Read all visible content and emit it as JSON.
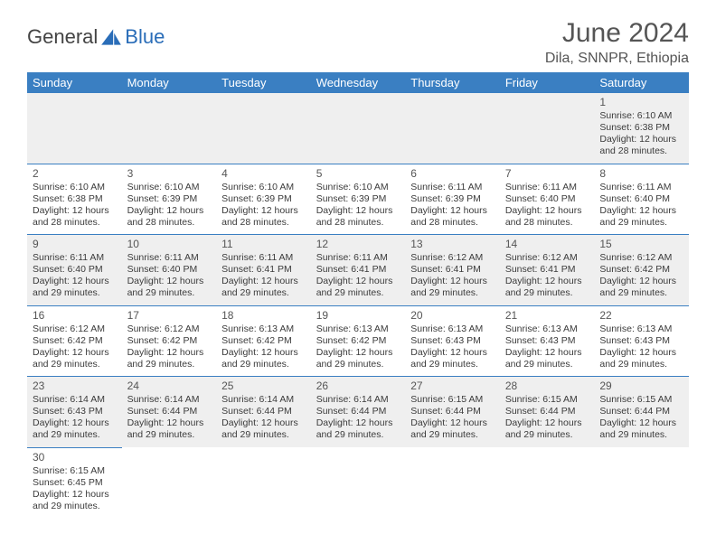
{
  "brand": {
    "part1": "General",
    "part2": "Blue",
    "logo_color": "#2a6db8"
  },
  "title": "June 2024",
  "location": "Dila, SNNPR, Ethiopia",
  "colors": {
    "header_bg": "#3a7fc2",
    "header_text": "#ffffff",
    "row_even_bg": "#efefef",
    "row_odd_bg": "#ffffff",
    "cell_border": "#3a7fc2",
    "text": "#3b3b3b"
  },
  "typography": {
    "body_font": "Arial",
    "title_size_pt": 22,
    "cell_size_pt": 8
  },
  "days": [
    "Sunday",
    "Monday",
    "Tuesday",
    "Wednesday",
    "Thursday",
    "Friday",
    "Saturday"
  ],
  "first_weekday_index": 6,
  "num_days": 30,
  "cells": {
    "1": {
      "sunrise": "6:10 AM",
      "sunset": "6:38 PM",
      "daylight": "12 hours and 28 minutes."
    },
    "2": {
      "sunrise": "6:10 AM",
      "sunset": "6:38 PM",
      "daylight": "12 hours and 28 minutes."
    },
    "3": {
      "sunrise": "6:10 AM",
      "sunset": "6:39 PM",
      "daylight": "12 hours and 28 minutes."
    },
    "4": {
      "sunrise": "6:10 AM",
      "sunset": "6:39 PM",
      "daylight": "12 hours and 28 minutes."
    },
    "5": {
      "sunrise": "6:10 AM",
      "sunset": "6:39 PM",
      "daylight": "12 hours and 28 minutes."
    },
    "6": {
      "sunrise": "6:11 AM",
      "sunset": "6:39 PM",
      "daylight": "12 hours and 28 minutes."
    },
    "7": {
      "sunrise": "6:11 AM",
      "sunset": "6:40 PM",
      "daylight": "12 hours and 28 minutes."
    },
    "8": {
      "sunrise": "6:11 AM",
      "sunset": "6:40 PM",
      "daylight": "12 hours and 29 minutes."
    },
    "9": {
      "sunrise": "6:11 AM",
      "sunset": "6:40 PM",
      "daylight": "12 hours and 29 minutes."
    },
    "10": {
      "sunrise": "6:11 AM",
      "sunset": "6:40 PM",
      "daylight": "12 hours and 29 minutes."
    },
    "11": {
      "sunrise": "6:11 AM",
      "sunset": "6:41 PM",
      "daylight": "12 hours and 29 minutes."
    },
    "12": {
      "sunrise": "6:11 AM",
      "sunset": "6:41 PM",
      "daylight": "12 hours and 29 minutes."
    },
    "13": {
      "sunrise": "6:12 AM",
      "sunset": "6:41 PM",
      "daylight": "12 hours and 29 minutes."
    },
    "14": {
      "sunrise": "6:12 AM",
      "sunset": "6:41 PM",
      "daylight": "12 hours and 29 minutes."
    },
    "15": {
      "sunrise": "6:12 AM",
      "sunset": "6:42 PM",
      "daylight": "12 hours and 29 minutes."
    },
    "16": {
      "sunrise": "6:12 AM",
      "sunset": "6:42 PM",
      "daylight": "12 hours and 29 minutes."
    },
    "17": {
      "sunrise": "6:12 AM",
      "sunset": "6:42 PM",
      "daylight": "12 hours and 29 minutes."
    },
    "18": {
      "sunrise": "6:13 AM",
      "sunset": "6:42 PM",
      "daylight": "12 hours and 29 minutes."
    },
    "19": {
      "sunrise": "6:13 AM",
      "sunset": "6:42 PM",
      "daylight": "12 hours and 29 minutes."
    },
    "20": {
      "sunrise": "6:13 AM",
      "sunset": "6:43 PM",
      "daylight": "12 hours and 29 minutes."
    },
    "21": {
      "sunrise": "6:13 AM",
      "sunset": "6:43 PM",
      "daylight": "12 hours and 29 minutes."
    },
    "22": {
      "sunrise": "6:13 AM",
      "sunset": "6:43 PM",
      "daylight": "12 hours and 29 minutes."
    },
    "23": {
      "sunrise": "6:14 AM",
      "sunset": "6:43 PM",
      "daylight": "12 hours and 29 minutes."
    },
    "24": {
      "sunrise": "6:14 AM",
      "sunset": "6:44 PM",
      "daylight": "12 hours and 29 minutes."
    },
    "25": {
      "sunrise": "6:14 AM",
      "sunset": "6:44 PM",
      "daylight": "12 hours and 29 minutes."
    },
    "26": {
      "sunrise": "6:14 AM",
      "sunset": "6:44 PM",
      "daylight": "12 hours and 29 minutes."
    },
    "27": {
      "sunrise": "6:15 AM",
      "sunset": "6:44 PM",
      "daylight": "12 hours and 29 minutes."
    },
    "28": {
      "sunrise": "6:15 AM",
      "sunset": "6:44 PM",
      "daylight": "12 hours and 29 minutes."
    },
    "29": {
      "sunrise": "6:15 AM",
      "sunset": "6:44 PM",
      "daylight": "12 hours and 29 minutes."
    },
    "30": {
      "sunrise": "6:15 AM",
      "sunset": "6:45 PM",
      "daylight": "12 hours and 29 minutes."
    }
  },
  "labels": {
    "sunrise": "Sunrise:",
    "sunset": "Sunset:",
    "daylight": "Daylight:"
  }
}
